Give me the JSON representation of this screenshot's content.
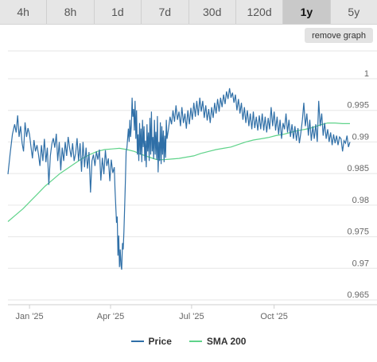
{
  "tabs": [
    {
      "label": "4h",
      "active": false
    },
    {
      "label": "8h",
      "active": false
    },
    {
      "label": "1d",
      "active": false
    },
    {
      "label": "7d",
      "active": false
    },
    {
      "label": "30d",
      "active": false
    },
    {
      "label": "120d",
      "active": false
    },
    {
      "label": "1y",
      "active": true
    },
    {
      "label": "5y",
      "active": false
    }
  ],
  "remove_button_label": "remove graph",
  "legend": {
    "price_label": "Price",
    "sma_label": "SMA 200"
  },
  "colors": {
    "price": "#2f6fa7",
    "sma": "#5fd38a",
    "grid": "#e6e6e6",
    "tick_text": "#666666"
  },
  "chart_data": {
    "type": "line",
    "x_ticks": [
      "Jan '25",
      "Apr '25",
      "Jul '25",
      "Oct '25"
    ],
    "y_ticks": [
      "0.965",
      "0.97",
      "0.975",
      "0.98",
      "0.985",
      "0.99",
      "0.995",
      "1"
    ],
    "ylim": [
      0.965,
      1.0
    ],
    "series": [
      {
        "name": "Price",
        "points": [
          [
            0,
            0.9849
          ],
          [
            3,
            0.9882
          ],
          [
            6,
            0.9912
          ],
          [
            9,
            0.9928
          ],
          [
            11,
            0.9915
          ],
          [
            13,
            0.9942
          ],
          [
            15,
            0.9908
          ],
          [
            17,
            0.9925
          ],
          [
            19,
            0.9898
          ],
          [
            21,
            0.9885
          ],
          [
            23,
            0.9931
          ],
          [
            25,
            0.9908
          ],
          [
            27,
            0.9922
          ],
          [
            29,
            0.9912
          ],
          [
            31,
            0.9892
          ],
          [
            33,
            0.9874
          ],
          [
            35,
            0.9903
          ],
          [
            37,
            0.9885
          ],
          [
            39,
            0.9895
          ],
          [
            41,
            0.9881
          ],
          [
            43,
            0.9862
          ],
          [
            45,
            0.9895
          ],
          [
            47,
            0.987
          ],
          [
            49,
            0.9905
          ],
          [
            51,
            0.9868
          ],
          [
            53,
            0.9891
          ],
          [
            55,
            0.9832
          ],
          [
            57,
            0.9878
          ],
          [
            59,
            0.9897
          ],
          [
            61,
            0.9906
          ],
          [
            63,
            0.9891
          ],
          [
            65,
            0.9913
          ],
          [
            67,
            0.987
          ],
          [
            69,
            0.99
          ],
          [
            71,
            0.9855
          ],
          [
            73,
            0.9891
          ],
          [
            75,
            0.987
          ],
          [
            77,
            0.99
          ],
          [
            79,
            0.9878
          ],
          [
            81,
            0.9908
          ],
          [
            83,
            0.989
          ],
          [
            85,
            0.9876
          ],
          [
            87,
            0.9898
          ],
          [
            89,
            0.987
          ],
          [
            91,
            0.9882
          ],
          [
            93,
            0.9906
          ],
          [
            95,
            0.987
          ],
          [
            97,
            0.9898
          ],
          [
            99,
            0.9853
          ],
          [
            101,
            0.99
          ],
          [
            103,
            0.986
          ],
          [
            105,
            0.9891
          ],
          [
            107,
            0.9858
          ],
          [
            109,
            0.9884
          ],
          [
            111,
            0.982
          ],
          [
            113,
            0.987
          ],
          [
            115,
            0.988
          ],
          [
            117,
            0.9862
          ],
          [
            119,
            0.9885
          ],
          [
            121,
            0.9872
          ],
          [
            123,
            0.9888
          ],
          [
            125,
            0.9839
          ],
          [
            127,
            0.9875
          ],
          [
            129,
            0.9849
          ],
          [
            131,
            0.9887
          ],
          [
            133,
            0.9862
          ],
          [
            135,
            0.9874
          ],
          [
            137,
            0.9838
          ],
          [
            139,
            0.9872
          ],
          [
            141,
            0.9851
          ],
          [
            143,
            0.986
          ],
          [
            144,
            0.9825
          ],
          [
            146,
            0.9772
          ],
          [
            147,
            0.9782
          ],
          [
            148,
            0.972
          ],
          [
            149,
            0.9752
          ],
          [
            150,
            0.9702
          ],
          [
            151,
            0.973
          ],
          [
            152,
            0.9705
          ],
          [
            153,
            0.9698
          ],
          [
            154,
            0.974
          ],
          [
            155,
            0.973
          ],
          [
            156,
            0.9758
          ],
          [
            157,
            0.98
          ],
          [
            158,
            0.984
          ],
          [
            159,
            0.9885
          ],
          [
            160,
            0.9891
          ],
          [
            162,
            0.9921
          ],
          [
            163,
            0.99
          ],
          [
            164,
            0.9935
          ],
          [
            165,
            0.9908
          ],
          [
            166,
            0.9927
          ],
          [
            167,
            0.997
          ],
          [
            168,
            0.994
          ],
          [
            169,
            0.9952
          ],
          [
            170,
            0.9918
          ],
          [
            171,
            0.9965
          ],
          [
            172,
            0.9905
          ],
          [
            173,
            0.995
          ],
          [
            174,
            0.988
          ],
          [
            175,
            0.9912
          ],
          [
            176,
            0.987
          ],
          [
            177,
            0.993
          ],
          [
            178,
            0.988
          ],
          [
            179,
            0.9921
          ],
          [
            180,
            0.9868
          ],
          [
            181,
            0.9935
          ],
          [
            182,
            0.9892
          ],
          [
            183,
            0.9925
          ],
          [
            184,
            0.987
          ],
          [
            185,
            0.9902
          ],
          [
            186,
            0.986
          ],
          [
            187,
            0.9928
          ],
          [
            188,
            0.9885
          ],
          [
            189,
            0.9915
          ],
          [
            190,
            0.987
          ],
          [
            191,
            0.9938
          ],
          [
            192,
            0.988
          ],
          [
            193,
            0.9948
          ],
          [
            194,
            0.9885
          ],
          [
            195,
            0.9908
          ],
          [
            196,
            0.9873
          ],
          [
            197,
            0.9935
          ],
          [
            198,
            0.988
          ],
          [
            199,
            0.9916
          ],
          [
            200,
            0.9872
          ],
          [
            201,
            0.9941
          ],
          [
            202,
            0.9852
          ],
          [
            203,
            0.99
          ],
          [
            204,
            0.987
          ],
          [
            205,
            0.9931
          ],
          [
            206,
            0.9865
          ],
          [
            207,
            0.9925
          ],
          [
            208,
            0.988
          ],
          [
            209,
            0.9918
          ],
          [
            210,
            0.9868
          ],
          [
            211,
            0.991
          ],
          [
            212,
            0.9875
          ],
          [
            213,
            0.9935
          ],
          [
            214,
            0.9905
          ],
          [
            216,
            0.9921
          ],
          [
            218,
            0.994
          ],
          [
            220,
            0.9928
          ],
          [
            222,
            0.995
          ],
          [
            224,
            0.9932
          ],
          [
            226,
            0.9958
          ],
          [
            228,
            0.9935
          ],
          [
            230,
            0.9948
          ],
          [
            232,
            0.9925
          ],
          [
            234,
            0.9955
          ],
          [
            236,
            0.993
          ],
          [
            238,
            0.9945
          ],
          [
            240,
            0.9921
          ],
          [
            242,
            0.995
          ],
          [
            244,
            0.9928
          ],
          [
            246,
            0.9954
          ],
          [
            248,
            0.9935
          ],
          [
            250,
            0.9962
          ],
          [
            252,
            0.994
          ],
          [
            254,
            0.9965
          ],
          [
            256,
            0.9942
          ],
          [
            258,
            0.997
          ],
          [
            260,
            0.9948
          ],
          [
            262,
            0.9965
          ],
          [
            264,
            0.9938
          ],
          [
            266,
            0.9958
          ],
          [
            268,
            0.9934
          ],
          [
            270,
            0.9952
          ],
          [
            272,
            0.993
          ],
          [
            274,
            0.9955
          ],
          [
            276,
            0.9938
          ],
          [
            278,
            0.9962
          ],
          [
            280,
            0.9945
          ],
          [
            282,
            0.9968
          ],
          [
            284,
            0.9948
          ],
          [
            286,
            0.997
          ],
          [
            288,
            0.9955
          ],
          [
            290,
            0.9975
          ],
          [
            292,
            0.996
          ],
          [
            294,
            0.998
          ],
          [
            296,
            0.9968
          ],
          [
            298,
            0.9985
          ],
          [
            300,
            0.997
          ],
          [
            302,
            0.9978
          ],
          [
            304,
            0.9962
          ],
          [
            306,
            0.9975
          ],
          [
            308,
            0.995
          ],
          [
            310,
            0.9968
          ],
          [
            312,
            0.9945
          ],
          [
            314,
            0.9962
          ],
          [
            316,
            0.9935
          ],
          [
            318,
            0.9955
          ],
          [
            320,
            0.993
          ],
          [
            322,
            0.995
          ],
          [
            324,
            0.9925
          ],
          [
            326,
            0.9945
          ],
          [
            328,
            0.992
          ],
          [
            330,
            0.9948
          ],
          [
            332,
            0.9922
          ],
          [
            334,
            0.994
          ],
          [
            336,
            0.9918
          ],
          [
            338,
            0.9942
          ],
          [
            340,
            0.992
          ],
          [
            342,
            0.9945
          ],
          [
            344,
            0.9918
          ],
          [
            346,
            0.994
          ],
          [
            348,
            0.9915
          ],
          [
            350,
            0.9938
          ],
          [
            352,
            0.992
          ],
          [
            354,
            0.9955
          ],
          [
            356,
            0.9925
          ],
          [
            358,
            0.9948
          ],
          [
            360,
            0.9918
          ],
          [
            362,
            0.994
          ],
          [
            364,
            0.9912
          ],
          [
            366,
            0.9935
          ],
          [
            368,
            0.9905
          ],
          [
            370,
            0.993
          ],
          [
            372,
            0.992
          ],
          [
            374,
            0.9945
          ],
          [
            376,
            0.9915
          ],
          [
            378,
            0.9935
          ],
          [
            380,
            0.9908
          ],
          [
            382,
            0.9928
          ],
          [
            384,
            0.9905
          ],
          [
            386,
            0.9925
          ],
          [
            388,
            0.9902
          ],
          [
            390,
            0.9922
          ],
          [
            392,
            0.9898
          ],
          [
            394,
            0.9915
          ],
          [
            396,
            0.9935
          ],
          [
            398,
            0.9962
          ],
          [
            400,
            0.9925
          ],
          [
            402,
            0.9945
          ],
          [
            404,
            0.991
          ],
          [
            406,
            0.9935
          ],
          [
            408,
            0.9902
          ],
          [
            410,
            0.9925
          ],
          [
            412,
            0.9905
          ],
          [
            414,
            0.9928
          ],
          [
            416,
            0.99
          ],
          [
            418,
            0.9965
          ],
          [
            420,
            0.9925
          ],
          [
            422,
            0.9945
          ],
          [
            424,
            0.991
          ],
          [
            426,
            0.993
          ],
          [
            428,
            0.9905
          ],
          [
            430,
            0.992
          ],
          [
            432,
            0.99
          ],
          [
            434,
            0.9915
          ],
          [
            436,
            0.9895
          ],
          [
            438,
            0.9912
          ],
          [
            440,
            0.9898
          ],
          [
            442,
            0.991
          ],
          [
            444,
            0.9895
          ],
          [
            446,
            0.9908
          ],
          [
            448,
            0.9905
          ],
          [
            450,
            0.9885
          ],
          [
            452,
            0.9902
          ],
          [
            454,
            0.9898
          ],
          [
            456,
            0.991
          ],
          [
            458,
            0.9892
          ],
          [
            460,
            0.99
          ]
        ]
      },
      {
        "name": "SMA 200",
        "points": [
          [
            0,
            0.9774
          ],
          [
            10,
            0.9784
          ],
          [
            20,
            0.9794
          ],
          [
            30,
            0.9806
          ],
          [
            40,
            0.9818
          ],
          [
            50,
            0.983
          ],
          [
            60,
            0.984
          ],
          [
            70,
            0.985
          ],
          [
            80,
            0.9858
          ],
          [
            90,
            0.9866
          ],
          [
            100,
            0.9874
          ],
          [
            110,
            0.988
          ],
          [
            120,
            0.9885
          ],
          [
            130,
            0.9888
          ],
          [
            140,
            0.9889
          ],
          [
            150,
            0.989
          ],
          [
            160,
            0.9888
          ],
          [
            170,
            0.9885
          ],
          [
            180,
            0.988
          ],
          [
            190,
            0.9876
          ],
          [
            200,
            0.9872
          ],
          [
            210,
            0.9872
          ],
          [
            220,
            0.9873
          ],
          [
            230,
            0.9874
          ],
          [
            240,
            0.9876
          ],
          [
            250,
            0.9878
          ],
          [
            260,
            0.9882
          ],
          [
            270,
            0.9885
          ],
          [
            280,
            0.9888
          ],
          [
            290,
            0.989
          ],
          [
            300,
            0.9892
          ],
          [
            310,
            0.9896
          ],
          [
            320,
            0.99
          ],
          [
            330,
            0.9903
          ],
          [
            340,
            0.9905
          ],
          [
            350,
            0.9907
          ],
          [
            360,
            0.991
          ],
          [
            370,
            0.9912
          ],
          [
            380,
            0.9915
          ],
          [
            390,
            0.9918
          ],
          [
            400,
            0.992
          ],
          [
            410,
            0.9923
          ],
          [
            420,
            0.9927
          ],
          [
            430,
            0.993
          ],
          [
            440,
            0.993
          ],
          [
            450,
            0.9929
          ],
          [
            460,
            0.9929
          ]
        ]
      }
    ]
  }
}
